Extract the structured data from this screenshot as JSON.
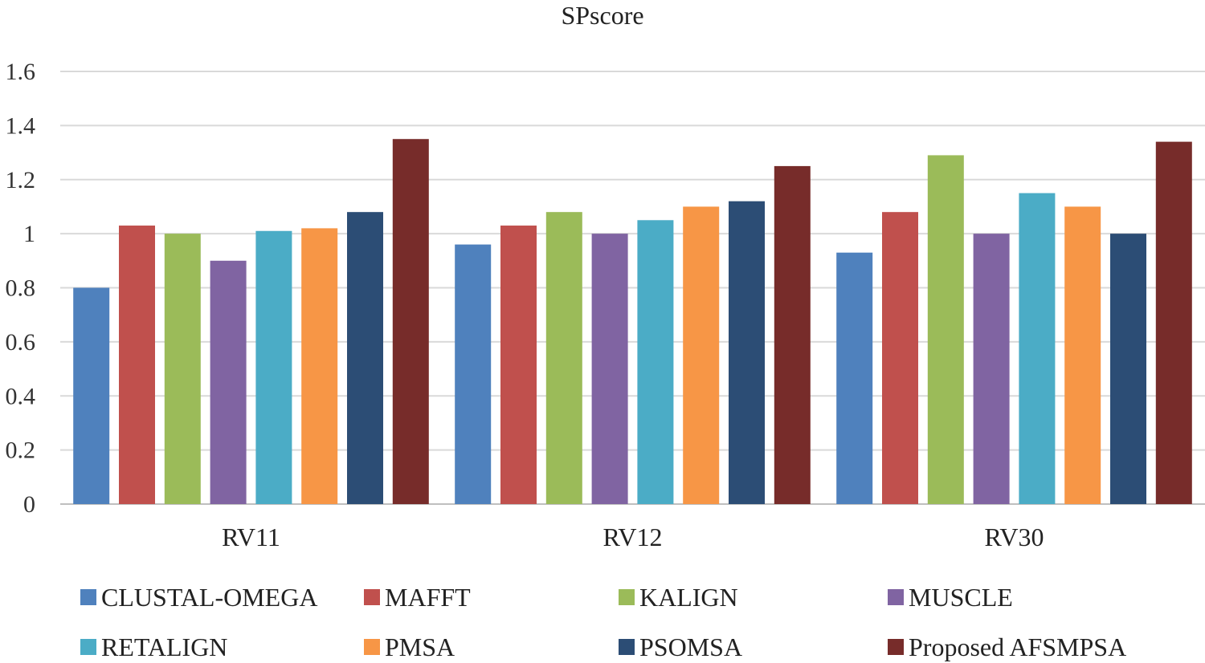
{
  "chart_data": {
    "type": "bar",
    "title": "SPscore",
    "xlabel": "",
    "ylabel": "",
    "categories": [
      "RV11",
      "RV12",
      "RV30"
    ],
    "ylim": [
      0,
      1.6
    ],
    "yticks": [
      "0",
      "0.2",
      "0.4",
      "0.6",
      "0.8",
      "1",
      "1.2",
      "1.4",
      "1.6"
    ],
    "grid": true,
    "legend_position": "bottom",
    "series": [
      {
        "name": "CLUSTAL-OMEGA",
        "color": "#4F81BD",
        "values": [
          0.8,
          0.96,
          0.93
        ]
      },
      {
        "name": "MAFFT",
        "color": "#C0504D",
        "values": [
          1.03,
          1.03,
          1.08
        ]
      },
      {
        "name": "KALIGN",
        "color": "#9BBB59",
        "values": [
          1.0,
          1.08,
          1.29
        ]
      },
      {
        "name": "MUSCLE",
        "color": "#8064A2",
        "values": [
          0.9,
          1.0,
          1.0
        ]
      },
      {
        "name": "RETALIGN",
        "color": "#4BACC6",
        "values": [
          1.01,
          1.05,
          1.15
        ]
      },
      {
        "name": "PMSA",
        "color": "#F79646",
        "values": [
          1.02,
          1.1,
          1.1
        ]
      },
      {
        "name": "PSOMSA",
        "color": "#2C4D75",
        "values": [
          1.08,
          1.12,
          1.0
        ]
      },
      {
        "name": "Proposed AFSMPSA",
        "color": "#772C2A",
        "values": [
          1.35,
          1.25,
          1.34
        ]
      }
    ]
  }
}
